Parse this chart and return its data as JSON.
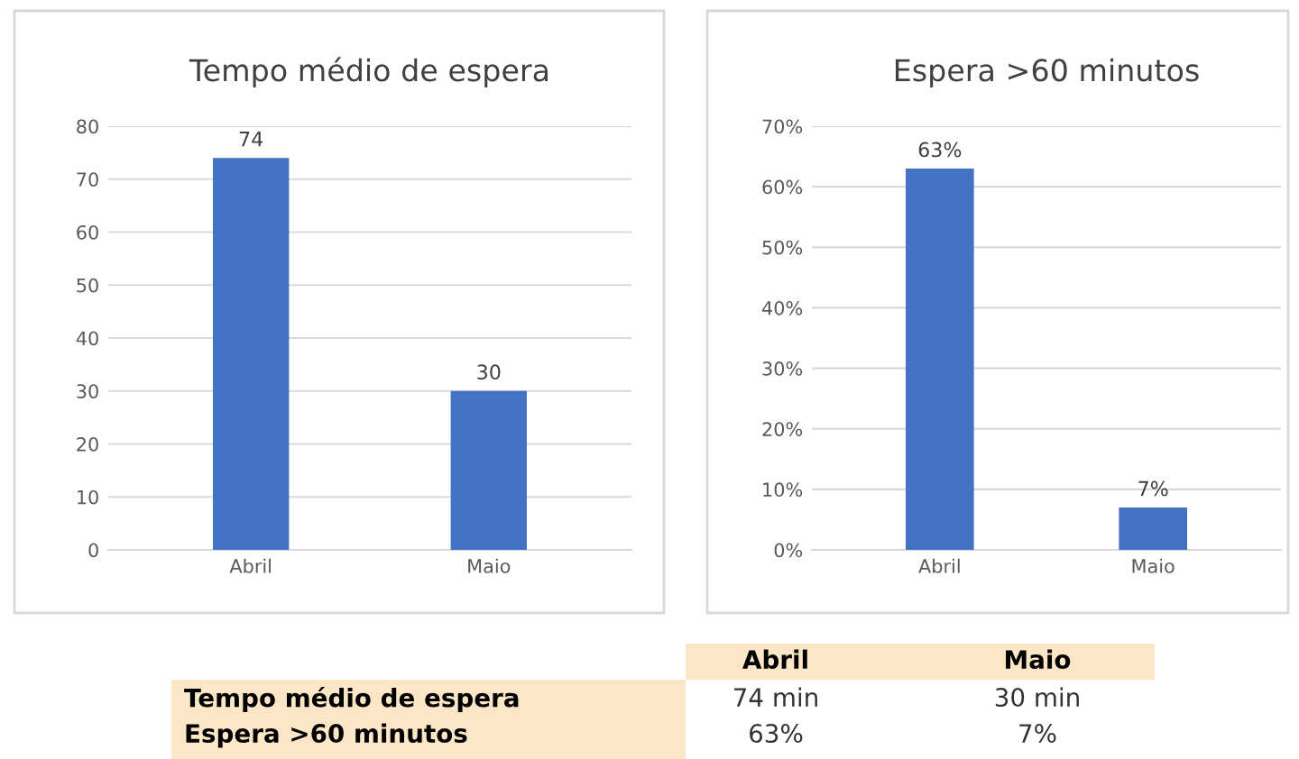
{
  "chart_data": [
    {
      "type": "bar",
      "title": "Tempo médio de espera",
      "categories": [
        "Abril",
        "Maio"
      ],
      "values": [
        74,
        30
      ],
      "color": "#4472c4",
      "ylim": [
        0,
        80
      ],
      "yticks": [
        0,
        10,
        20,
        30,
        40,
        50,
        60,
        70,
        80
      ],
      "grid": "y",
      "data_labels": true
    },
    {
      "type": "bar",
      "title": "Espera >60 minutos",
      "categories": [
        "Abril",
        "Maio"
      ],
      "values": [
        63,
        7
      ],
      "value_labels": [
        "63%",
        "7%"
      ],
      "color": "#4472c4",
      "ylim": [
        0,
        70
      ],
      "yticks": [
        {
          "value": 0,
          "label": "0%"
        },
        {
          "value": 10,
          "label": "10%"
        },
        {
          "value": 20,
          "label": "20%"
        },
        {
          "value": 30,
          "label": "30%"
        },
        {
          "value": 40,
          "label": "40%"
        },
        {
          "value": 50,
          "label": "50%"
        },
        {
          "value": 60,
          "label": "60%"
        },
        {
          "value": 70,
          "label": "70%"
        }
      ],
      "grid": "y"
    },
    {
      "type": "other",
      "categories": [
        "Abril",
        "Maio"
      ],
      "y_categories": [
        "Tempo médio de espera",
        "Espera >60 minutos"
      ],
      "cell_labels": [
        [
          "74 min",
          "30 min"
        ],
        [
          "63%",
          "7%"
        ]
      ],
      "color": "#fbe7c6"
    }
  ]
}
